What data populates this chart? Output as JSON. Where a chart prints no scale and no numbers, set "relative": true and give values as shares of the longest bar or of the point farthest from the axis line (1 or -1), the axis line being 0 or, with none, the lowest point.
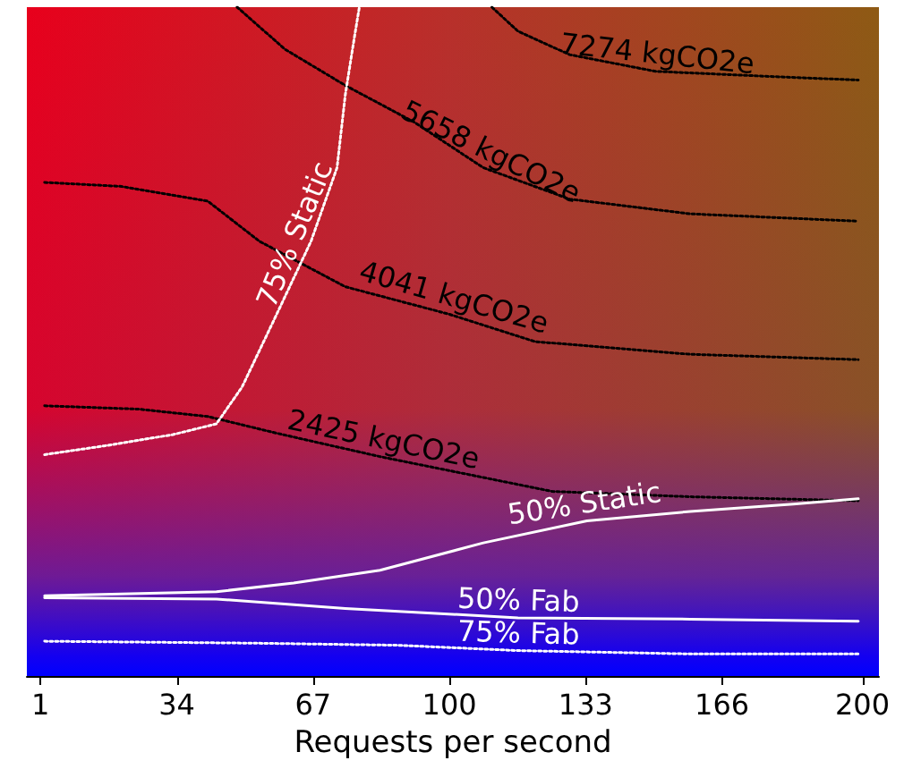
{
  "chart_data": {
    "type": "line",
    "relative": true,
    "xlabel": "Requests per second",
    "xlim": [
      -2.3,
      204
    ],
    "xticks": [
      1,
      34,
      67,
      100,
      133,
      166,
      200
    ],
    "grid": false,
    "legend": false,
    "marker": "none",
    "series": [
      {
        "name": "7274 kgCO2e",
        "color": "#000000",
        "line_style": "dotted",
        "x": [
          110.3,
          116.6,
          129.1,
          149.9,
          179.1,
          199
        ],
        "values": [
          1.0,
          0.964,
          0.929,
          0.904,
          0.896,
          0.891
        ]
      },
      {
        "name": "5658 kgCO2e",
        "color": "#000000",
        "line_style": "dotted",
        "x": [
          48.6,
          60.2,
          74.8,
          91.5,
          108.2,
          129.1,
          158.3,
          199
        ],
        "values": [
          1.0,
          0.937,
          0.883,
          0.828,
          0.76,
          0.713,
          0.691,
          0.68
        ]
      },
      {
        "name": "4041 kgCO2e",
        "color": "#000000",
        "line_style": "dotted",
        "x": [
          2,
          20.6,
          41.5,
          54,
          74.8,
          99.9,
          120.7,
          158.3,
          199
        ],
        "values": [
          0.738,
          0.732,
          0.71,
          0.65,
          0.582,
          0.541,
          0.5,
          0.481,
          0.473
        ]
      },
      {
        "name": "2425 kgCO2e",
        "color": "#000000",
        "line_style": "dotted",
        "x": [
          2,
          24.8,
          41.5,
          58.2,
          83.2,
          124.9,
          158.3,
          199
        ],
        "values": [
          0.404,
          0.399,
          0.388,
          0.363,
          0.328,
          0.276,
          0.268,
          0.262
        ]
      },
      {
        "name": "75% Static",
        "color": "#ffffff",
        "line_style": "dotted",
        "x": [
          2,
          16.4,
          33.1,
          43.6,
          49.8,
          58.2,
          66.5,
          72.8,
          74.8,
          76.9,
          78.2
        ],
        "values": [
          0.331,
          0.344,
          0.361,
          0.377,
          0.432,
          0.541,
          0.65,
          0.76,
          0.869,
          0.951,
          1.0
        ]
      },
      {
        "name": "50% Static",
        "color": "#ffffff",
        "line_style": "solid",
        "x": [
          2,
          43.6,
          62.3,
          83.2,
          108.2,
          133.3,
          158.3,
          183.3,
          199
        ],
        "values": [
          0.12,
          0.126,
          0.139,
          0.158,
          0.199,
          0.232,
          0.246,
          0.257,
          0.265
        ]
      },
      {
        "name": "50% Fab",
        "color": "#ffffff",
        "line_style": "solid",
        "x": [
          2,
          43.6,
          74.8,
          116.6,
          158.3,
          199
        ],
        "values": [
          0.117,
          0.115,
          0.101,
          0.087,
          0.085,
          0.082
        ]
      },
      {
        "name": "75% Fab",
        "color": "#ffffff",
        "line_style": "dotted",
        "x": [
          2,
          54,
          87.4,
          116.6,
          158.3,
          199
        ],
        "values": [
          0.052,
          0.049,
          0.046,
          0.038,
          0.033,
          0.033
        ]
      }
    ]
  }
}
